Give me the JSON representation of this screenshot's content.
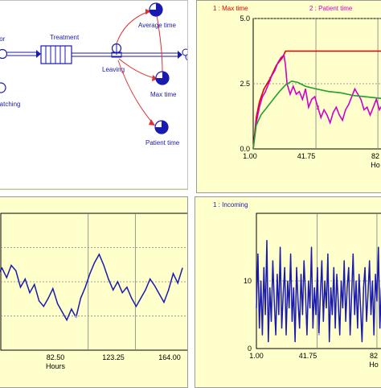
{
  "diagram": {
    "labels": {
      "actor": "ctor",
      "treatment": "Treatment",
      "leaving": "Leaving",
      "average_time": "Average time",
      "max_time": "Max time",
      "patient_time": "Patient time",
      "matching": "matching"
    }
  },
  "colors": {
    "panel_bg": "#ffffcc",
    "red": "#e00000",
    "magenta": "#d000c8",
    "green": "#20a030",
    "blue": "#1a1ab0"
  },
  "chart_data": [
    {
      "type": "line",
      "legend": [
        "1 : Max time",
        "2 : Patient time"
      ],
      "yticks": [
        "5.0",
        "2.5",
        "0.0"
      ],
      "xticks": [
        "1.00",
        "41.75",
        "82"
      ],
      "xlabel": "Ho",
      "ylim": [
        0,
        5
      ],
      "xlim": [
        1,
        95
      ],
      "series": [
        {
          "name": "Max time",
          "color": "#e00000",
          "marker": "1",
          "points": [
            [
              1,
              0
            ],
            [
              3,
              1.2
            ],
            [
              5,
              1.8
            ],
            [
              8,
              2.3
            ],
            [
              12,
              2.7
            ],
            [
              16,
              3.2
            ],
            [
              20,
              3.5
            ],
            [
              22,
              3.75
            ],
            [
              95,
              3.75
            ]
          ]
        },
        {
          "name": "Patient time",
          "color": "#d000c8",
          "marker": "2",
          "points": [
            [
              1,
              0
            ],
            [
              3,
              1.0
            ],
            [
              5,
              1.6
            ],
            [
              7,
              2.0
            ],
            [
              9,
              2.2
            ],
            [
              11,
              2.5
            ],
            [
              13,
              2.8
            ],
            [
              15,
              3.0
            ],
            [
              17,
              3.3
            ],
            [
              19,
              3.5
            ],
            [
              21,
              3.6
            ],
            [
              22,
              3.2
            ],
            [
              23,
              2.5
            ],
            [
              25,
              2.1
            ],
            [
              27,
              2.4
            ],
            [
              29,
              2.1
            ],
            [
              31,
              2.2
            ],
            [
              33,
              1.9
            ],
            [
              35,
              2.3
            ],
            [
              37,
              1.6
            ],
            [
              39,
              1.9
            ],
            [
              41,
              2.0
            ],
            [
              43,
              1.6
            ],
            [
              45,
              1.2
            ],
            [
              47,
              1.5
            ],
            [
              49,
              1.3
            ],
            [
              51,
              1.0
            ],
            [
              53,
              1.4
            ],
            [
              55,
              1.6
            ],
            [
              57,
              1.3
            ],
            [
              59,
              1.1
            ],
            [
              61,
              1.5
            ],
            [
              63,
              1.7
            ],
            [
              65,
              2.0
            ],
            [
              67,
              2.3
            ],
            [
              69,
              2.1
            ],
            [
              71,
              1.9
            ],
            [
              73,
              1.5
            ],
            [
              75,
              1.6
            ],
            [
              77,
              1.3
            ],
            [
              79,
              1.6
            ],
            [
              81,
              1.9
            ],
            [
              83,
              1.5
            ],
            [
              85,
              1.7
            ],
            [
              87,
              1.9
            ],
            [
              89,
              1.6
            ],
            [
              91,
              1.8
            ],
            [
              93,
              2.0
            ],
            [
              95,
              1.7
            ]
          ]
        },
        {
          "name": "Average time",
          "color": "#20a030",
          "marker": "",
          "points": [
            [
              1,
              0
            ],
            [
              3,
              0.9
            ],
            [
              6,
              1.3
            ],
            [
              10,
              1.6
            ],
            [
              14,
              1.9
            ],
            [
              18,
              2.2
            ],
            [
              22,
              2.45
            ],
            [
              26,
              2.6
            ],
            [
              30,
              2.55
            ],
            [
              35,
              2.4
            ],
            [
              42,
              2.3
            ],
            [
              50,
              2.2
            ],
            [
              58,
              2.15
            ],
            [
              66,
              2.05
            ],
            [
              74,
              2.0
            ],
            [
              82,
              1.95
            ],
            [
              90,
              1.9
            ],
            [
              95,
              1.85
            ]
          ]
        }
      ]
    },
    {
      "type": "line",
      "legend": [],
      "yticks": [],
      "xticks": [
        "82.50",
        "123.25",
        "164.00"
      ],
      "xlabel": "Hours",
      "ylim": [
        0,
        10
      ],
      "xlim": [
        0,
        164
      ],
      "series": [
        {
          "name": "",
          "color": "#1a1ab0",
          "marker": "1",
          "points": [
            [
              0,
              5.0
            ],
            [
              4,
              5.5
            ],
            [
              8,
              6.0
            ],
            [
              12,
              5.3
            ],
            [
              16,
              6.2
            ],
            [
              20,
              5.8
            ],
            [
              24,
              4.6
            ],
            [
              28,
              5.2
            ],
            [
              32,
              4.2
            ],
            [
              36,
              4.8
            ],
            [
              40,
              3.6
            ],
            [
              44,
              3.2
            ],
            [
              48,
              3.8
            ],
            [
              52,
              4.5
            ],
            [
              56,
              3.4
            ],
            [
              60,
              2.8
            ],
            [
              64,
              2.2
            ],
            [
              68,
              3.0
            ],
            [
              72,
              2.4
            ],
            [
              76,
              3.8
            ],
            [
              80,
              4.6
            ],
            [
              84,
              5.6
            ],
            [
              88,
              6.4
            ],
            [
              92,
              7.0
            ],
            [
              96,
              6.2
            ],
            [
              100,
              5.2
            ],
            [
              104,
              4.4
            ],
            [
              108,
              5.0
            ],
            [
              112,
              4.2
            ],
            [
              116,
              4.6
            ],
            [
              120,
              3.8
            ],
            [
              124,
              3.2
            ],
            [
              128,
              3.8
            ],
            [
              132,
              4.4
            ],
            [
              136,
              5.2
            ],
            [
              140,
              4.7
            ],
            [
              144,
              4.1
            ],
            [
              148,
              3.5
            ],
            [
              152,
              4.4
            ],
            [
              156,
              5.6
            ],
            [
              160,
              4.9
            ],
            [
              164,
              6.0
            ]
          ]
        }
      ]
    },
    {
      "type": "line",
      "legend": [
        "1 : Incoming"
      ],
      "yticks": [
        "10",
        "0"
      ],
      "xticks": [
        "1.00",
        "41.75",
        "82"
      ],
      "xlabel": "Ho",
      "ylim": [
        0,
        20
      ],
      "xlim": [
        1,
        95
      ],
      "series": [
        {
          "name": "Incoming",
          "color": "#1a1ab0",
          "marker": "1",
          "points": [
            [
              1,
              6
            ],
            [
              2,
              14
            ],
            [
              3,
              3
            ],
            [
              4,
              10
            ],
            [
              5,
              2
            ],
            [
              6,
              12
            ],
            [
              7,
              5
            ],
            [
              8,
              16
            ],
            [
              9,
              1
            ],
            [
              10,
              9
            ],
            [
              11,
              4
            ],
            [
              12,
              13
            ],
            [
              13,
              7
            ],
            [
              14,
              2
            ],
            [
              15,
              11
            ],
            [
              16,
              5
            ],
            [
              17,
              15
            ],
            [
              18,
              3
            ],
            [
              19,
              8
            ],
            [
              20,
              12
            ],
            [
              21,
              2
            ],
            [
              22,
              10
            ],
            [
              23,
              6
            ],
            [
              24,
              14
            ],
            [
              25,
              4
            ],
            [
              26,
              9
            ],
            [
              27,
              1
            ],
            [
              28,
              12
            ],
            [
              29,
              7
            ],
            [
              30,
              3
            ],
            [
              31,
              11
            ],
            [
              32,
              5
            ],
            [
              33,
              13
            ],
            [
              34,
              8
            ],
            [
              35,
              2
            ],
            [
              36,
              10
            ],
            [
              37,
              6
            ],
            [
              38,
              15
            ],
            [
              39,
              3
            ],
            [
              40,
              9
            ],
            [
              41,
              5
            ],
            [
              42,
              12
            ],
            [
              43,
              2
            ],
            [
              44,
              8
            ],
            [
              45,
              13
            ],
            [
              46,
              4
            ],
            [
              47,
              10
            ],
            [
              48,
              6
            ],
            [
              49,
              14
            ],
            [
              50,
              1
            ],
            [
              51,
              9
            ],
            [
              52,
              5
            ],
            [
              53,
              12
            ],
            [
              54,
              3
            ],
            [
              55,
              11
            ],
            [
              56,
              7
            ],
            [
              57,
              2
            ],
            [
              58,
              10
            ],
            [
              59,
              6
            ],
            [
              60,
              13
            ],
            [
              61,
              4
            ],
            [
              62,
              9
            ],
            [
              63,
              12
            ],
            [
              64,
              2
            ],
            [
              65,
              8
            ],
            [
              66,
              14
            ],
            [
              67,
              5
            ],
            [
              68,
              10
            ],
            [
              69,
              3
            ],
            [
              70,
              11
            ],
            [
              71,
              6
            ],
            [
              72,
              1
            ],
            [
              73,
              9
            ],
            [
              74,
              12
            ],
            [
              75,
              4
            ],
            [
              76,
              8
            ],
            [
              77,
              13
            ],
            [
              78,
              5
            ],
            [
              79,
              10
            ],
            [
              80,
              2
            ],
            [
              81,
              11
            ],
            [
              82,
              7
            ],
            [
              83,
              15
            ],
            [
              84,
              3
            ],
            [
              85,
              9
            ],
            [
              86,
              6
            ],
            [
              87,
              12
            ],
            [
              88,
              4
            ],
            [
              89,
              10
            ],
            [
              90,
              7
            ],
            [
              91,
              13
            ],
            [
              92,
              3
            ],
            [
              93,
              9
            ],
            [
              94,
              6
            ],
            [
              95,
              11
            ]
          ]
        }
      ]
    }
  ]
}
